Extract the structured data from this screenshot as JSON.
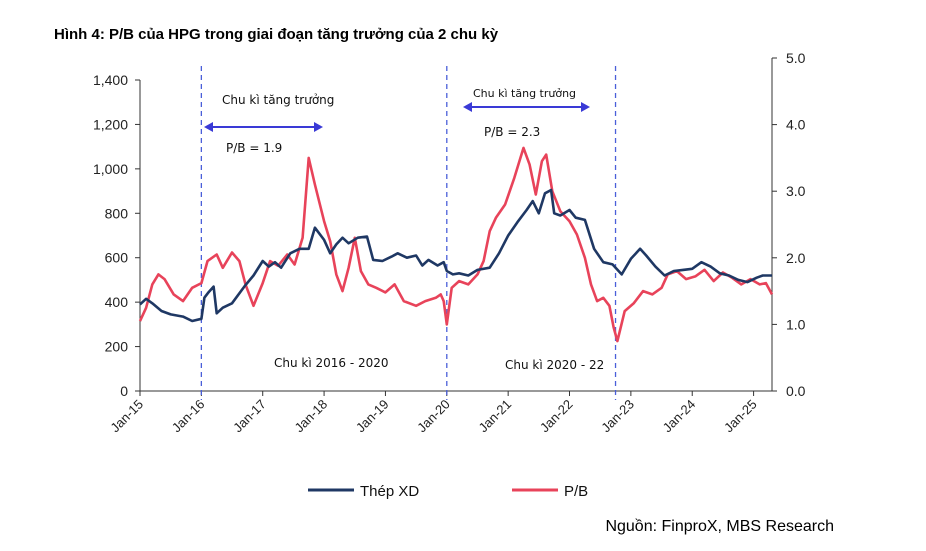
{
  "title": "Hình 4: P/B của HPG trong giai đoạn tăng trưởng của 2 chu kỳ",
  "source": "Nguồn: FinproX, MBS Research",
  "colors": {
    "steel": "#1f3864",
    "pb": "#e8435a",
    "arrow": "#3a3ad6",
    "divider": "#4a5fd9"
  },
  "chart_data": {
    "type": "line",
    "left_axis": {
      "range": [
        0,
        1400
      ],
      "ticks": [
        "0",
        "200",
        "400",
        "600",
        "800",
        "1,000",
        "1,200",
        "1,400"
      ]
    },
    "right_axis": {
      "range": [
        0,
        5
      ],
      "ticks": [
        "0.0",
        "1.0",
        "2.0",
        "3.0",
        "4.0",
        "5.0"
      ]
    },
    "x_ticks": [
      "Jan-15",
      "Jan-16",
      "Jan-17",
      "Jan-18",
      "Jan-19",
      "Jan-20",
      "Jan-21",
      "Jan-22",
      "Jan-23",
      "Jan-24",
      "Jan-25"
    ],
    "x_range": [
      2015.0,
      2025.3
    ],
    "legend": {
      "position": "bottom"
    },
    "series": [
      {
        "name": "Thép XD",
        "axis": "left",
        "points": [
          [
            2015.0,
            390
          ],
          [
            2015.1,
            415
          ],
          [
            2015.2,
            395
          ],
          [
            2015.35,
            360
          ],
          [
            2015.5,
            345
          ],
          [
            2015.7,
            335
          ],
          [
            2015.85,
            315
          ],
          [
            2016.0,
            325
          ],
          [
            2016.05,
            420
          ],
          [
            2016.12,
            445
          ],
          [
            2016.2,
            470
          ],
          [
            2016.25,
            350
          ],
          [
            2016.35,
            375
          ],
          [
            2016.5,
            395
          ],
          [
            2016.7,
            470
          ],
          [
            2016.85,
            520
          ],
          [
            2017.0,
            585
          ],
          [
            2017.1,
            560
          ],
          [
            2017.2,
            580
          ],
          [
            2017.3,
            555
          ],
          [
            2017.45,
            620
          ],
          [
            2017.6,
            640
          ],
          [
            2017.75,
            640
          ],
          [
            2017.85,
            735
          ],
          [
            2018.0,
            680
          ],
          [
            2018.1,
            620
          ],
          [
            2018.2,
            660
          ],
          [
            2018.3,
            690
          ],
          [
            2018.4,
            665
          ],
          [
            2018.55,
            690
          ],
          [
            2018.7,
            695
          ],
          [
            2018.8,
            590
          ],
          [
            2018.95,
            585
          ],
          [
            2019.1,
            605
          ],
          [
            2019.2,
            620
          ],
          [
            2019.35,
            600
          ],
          [
            2019.5,
            610
          ],
          [
            2019.6,
            565
          ],
          [
            2019.7,
            590
          ],
          [
            2019.85,
            565
          ],
          [
            2019.95,
            580
          ],
          [
            2020.0,
            540
          ],
          [
            2020.1,
            525
          ],
          [
            2020.2,
            530
          ],
          [
            2020.35,
            520
          ],
          [
            2020.5,
            545
          ],
          [
            2020.7,
            555
          ],
          [
            2020.85,
            620
          ],
          [
            2021.0,
            700
          ],
          [
            2021.15,
            760
          ],
          [
            2021.3,
            815
          ],
          [
            2021.4,
            855
          ],
          [
            2021.5,
            800
          ],
          [
            2021.6,
            890
          ],
          [
            2021.7,
            905
          ],
          [
            2021.75,
            800
          ],
          [
            2021.85,
            790
          ],
          [
            2022.0,
            815
          ],
          [
            2022.1,
            780
          ],
          [
            2022.25,
            770
          ],
          [
            2022.4,
            640
          ],
          [
            2022.55,
            580
          ],
          [
            2022.7,
            570
          ],
          [
            2022.85,
            525
          ],
          [
            2023.0,
            595
          ],
          [
            2023.15,
            640
          ],
          [
            2023.25,
            610
          ],
          [
            2023.4,
            560
          ],
          [
            2023.55,
            520
          ],
          [
            2023.7,
            540
          ],
          [
            2023.85,
            545
          ],
          [
            2024.0,
            550
          ],
          [
            2024.15,
            580
          ],
          [
            2024.3,
            560
          ],
          [
            2024.45,
            530
          ],
          [
            2024.6,
            520
          ],
          [
            2024.75,
            500
          ],
          [
            2024.9,
            490
          ],
          [
            2025.05,
            510
          ],
          [
            2025.15,
            520
          ],
          [
            2025.3,
            520
          ]
        ]
      },
      {
        "name": "P/B",
        "axis": "right",
        "points": [
          [
            2015.0,
            1.05
          ],
          [
            2015.1,
            1.25
          ],
          [
            2015.2,
            1.6
          ],
          [
            2015.3,
            1.75
          ],
          [
            2015.4,
            1.68
          ],
          [
            2015.55,
            1.45
          ],
          [
            2015.7,
            1.35
          ],
          [
            2015.85,
            1.55
          ],
          [
            2016.0,
            1.62
          ],
          [
            2016.1,
            1.95
          ],
          [
            2016.25,
            2.05
          ],
          [
            2016.35,
            1.85
          ],
          [
            2016.5,
            2.08
          ],
          [
            2016.62,
            1.95
          ],
          [
            2016.72,
            1.6
          ],
          [
            2016.85,
            1.28
          ],
          [
            2017.0,
            1.62
          ],
          [
            2017.12,
            1.95
          ],
          [
            2017.25,
            1.88
          ],
          [
            2017.4,
            2.05
          ],
          [
            2017.52,
            1.9
          ],
          [
            2017.65,
            2.3
          ],
          [
            2017.75,
            3.5
          ],
          [
            2017.85,
            3.1
          ],
          [
            2018.0,
            2.55
          ],
          [
            2018.1,
            2.25
          ],
          [
            2018.2,
            1.75
          ],
          [
            2018.3,
            1.5
          ],
          [
            2018.4,
            1.85
          ],
          [
            2018.5,
            2.3
          ],
          [
            2018.6,
            1.8
          ],
          [
            2018.72,
            1.6
          ],
          [
            2018.85,
            1.55
          ],
          [
            2019.0,
            1.48
          ],
          [
            2019.15,
            1.6
          ],
          [
            2019.3,
            1.35
          ],
          [
            2019.5,
            1.28
          ],
          [
            2019.65,
            1.35
          ],
          [
            2019.82,
            1.4
          ],
          [
            2019.9,
            1.45
          ],
          [
            2019.95,
            1.35
          ],
          [
            2020.0,
            1.0
          ],
          [
            2020.08,
            1.55
          ],
          [
            2020.2,
            1.65
          ],
          [
            2020.35,
            1.6
          ],
          [
            2020.5,
            1.75
          ],
          [
            2020.6,
            1.95
          ],
          [
            2020.7,
            2.4
          ],
          [
            2020.8,
            2.6
          ],
          [
            2020.95,
            2.8
          ],
          [
            2021.1,
            3.2
          ],
          [
            2021.25,
            3.65
          ],
          [
            2021.35,
            3.4
          ],
          [
            2021.45,
            2.95
          ],
          [
            2021.55,
            3.45
          ],
          [
            2021.62,
            3.55
          ],
          [
            2021.72,
            3.0
          ],
          [
            2021.85,
            2.7
          ],
          [
            2022.0,
            2.55
          ],
          [
            2022.12,
            2.35
          ],
          [
            2022.25,
            2.0
          ],
          [
            2022.35,
            1.6
          ],
          [
            2022.45,
            1.35
          ],
          [
            2022.55,
            1.4
          ],
          [
            2022.65,
            1.28
          ],
          [
            2022.72,
            0.95
          ],
          [
            2022.78,
            0.75
          ],
          [
            2022.9,
            1.2
          ],
          [
            2023.05,
            1.32
          ],
          [
            2023.2,
            1.5
          ],
          [
            2023.35,
            1.45
          ],
          [
            2023.5,
            1.55
          ],
          [
            2023.6,
            1.75
          ],
          [
            2023.75,
            1.8
          ],
          [
            2023.9,
            1.68
          ],
          [
            2024.05,
            1.72
          ],
          [
            2024.2,
            1.82
          ],
          [
            2024.35,
            1.65
          ],
          [
            2024.5,
            1.78
          ],
          [
            2024.65,
            1.7
          ],
          [
            2024.8,
            1.6
          ],
          [
            2024.95,
            1.68
          ],
          [
            2025.1,
            1.6
          ],
          [
            2025.2,
            1.62
          ],
          [
            2025.3,
            1.45
          ]
        ]
      }
    ],
    "dividers": [
      2016.0,
      2020.0,
      2022.75
    ],
    "annotations": {
      "cycle1_growth": "Chu kì tăng trưởng",
      "cycle1_pb": "P/B = 1.9",
      "cycle2_growth": "Chu kì tăng trưởng",
      "cycle2_pb": "P/B = 2.3",
      "cycle1_label": "Chu kì 2016 - 2020",
      "cycle2_label": "Chu kì 2020 - 22"
    }
  }
}
